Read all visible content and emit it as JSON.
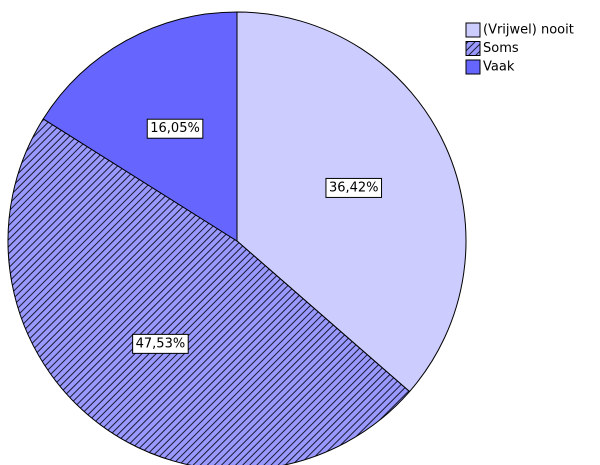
{
  "chart_data": {
    "type": "pie",
    "categories": [
      "(Vrijwel) nooit",
      "Soms",
      "Vaak"
    ],
    "values": [
      36.42,
      47.53,
      16.05
    ],
    "value_labels": [
      "36,42%",
      "47,53%",
      "16,05%"
    ],
    "colors": [
      "#ccccff",
      "#9999ff",
      "#6666ff"
    ],
    "hatch": [
      false,
      true,
      false
    ],
    "legend": "top-right"
  }
}
